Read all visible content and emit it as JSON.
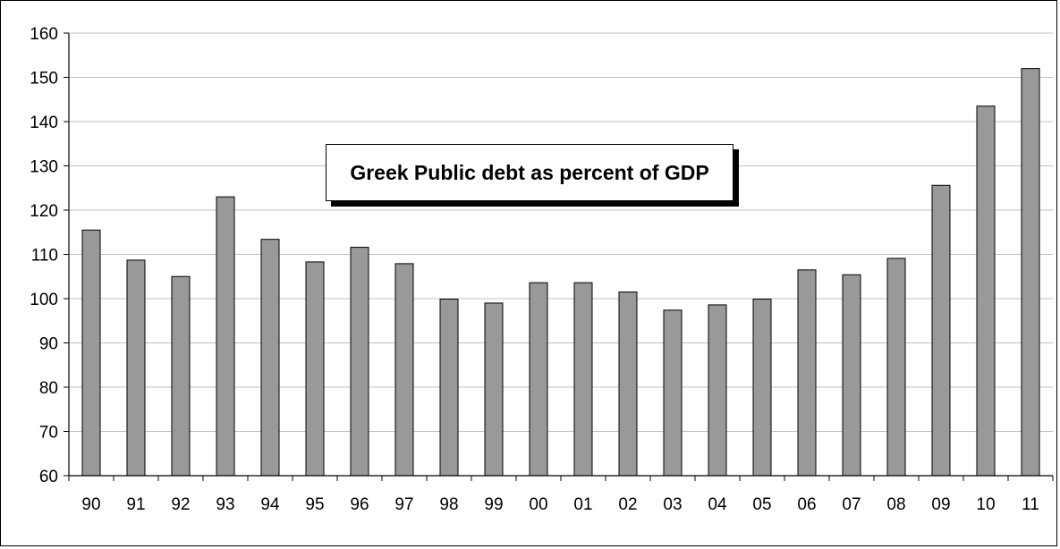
{
  "chart_data": {
    "type": "bar",
    "title": "Greek Public debt as percent of GDP",
    "xlabel": "",
    "ylabel": "",
    "categories": [
      "90",
      "91",
      "92",
      "93",
      "94",
      "95",
      "96",
      "97",
      "98",
      "99",
      "00",
      "01",
      "02",
      "03",
      "04",
      "05",
      "06",
      "07",
      "08",
      "09",
      "10",
      "11"
    ],
    "values": [
      115.5,
      108.7,
      105,
      123,
      113.4,
      108.3,
      111.6,
      107.9,
      99.9,
      99,
      103.6,
      103.6,
      101.5,
      97.4,
      98.6,
      99.9,
      106.5,
      105.4,
      109.1,
      125.6,
      143.5,
      152
    ],
    "ylim": [
      60,
      160
    ],
    "yticks": [
      60,
      70,
      80,
      90,
      100,
      110,
      120,
      130,
      140,
      150,
      160
    ],
    "grid": true,
    "legend": "none",
    "colors": {
      "bar_fill": "#999999",
      "bar_stroke": "#000000",
      "gridline": "#c0c0c0",
      "axis": "#000000"
    }
  }
}
